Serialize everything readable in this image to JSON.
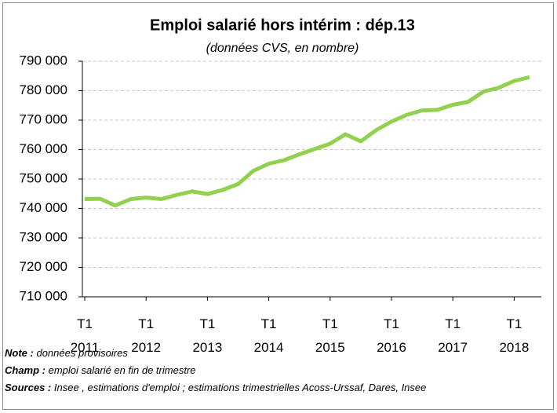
{
  "chart_data": {
    "type": "line",
    "title": "Emploi salarié hors intérim : dép.13",
    "subtitle": "(données CVS, en nombre)",
    "categories": [
      "T1 2011",
      null,
      null,
      null,
      "T1 2012",
      null,
      null,
      null,
      "T1 2013",
      null,
      null,
      null,
      "T1 2014",
      null,
      null,
      null,
      "T1 2015",
      null,
      null,
      null,
      "T1 2016",
      null,
      null,
      null,
      "T1 2017",
      null,
      null,
      null,
      "T1 2018",
      null
    ],
    "series": [
      {
        "name": "Emploi salarié hors intérim",
        "color": "#92d050",
        "values": [
          743200,
          743300,
          741000,
          743200,
          743700,
          743200,
          744600,
          745800,
          744900,
          746300,
          748300,
          752800,
          755200,
          756400,
          758400,
          760200,
          762000,
          765200,
          762800,
          766600,
          769500,
          771800,
          773300,
          773500,
          775200,
          776200,
          779700,
          781000,
          783300,
          784600
        ]
      }
    ],
    "ylim": [
      710000,
      790000
    ],
    "yticks": [
      {
        "value": 710000,
        "label": "710 000"
      },
      {
        "value": 720000,
        "label": "720 000"
      },
      {
        "value": 730000,
        "label": "730 000"
      },
      {
        "value": 740000,
        "label": "740 000"
      },
      {
        "value": 750000,
        "label": "750 000"
      },
      {
        "value": 760000,
        "label": "760 000"
      },
      {
        "value": 770000,
        "label": "770 000"
      },
      {
        "value": 780000,
        "label": "780 000"
      },
      {
        "value": 790000,
        "label": "790 000"
      }
    ],
    "grid": true
  },
  "notes": [
    {
      "label": "Note :",
      "text": "données provisoires"
    },
    {
      "label": "Champ :",
      "text": "emploi salarié en fin de trimestre"
    },
    {
      "label": "Sources :",
      "text": "Insee , estimations d'emploi ; estimations trimestrielles Acoss-Urssaf, Dares, Insee"
    }
  ]
}
